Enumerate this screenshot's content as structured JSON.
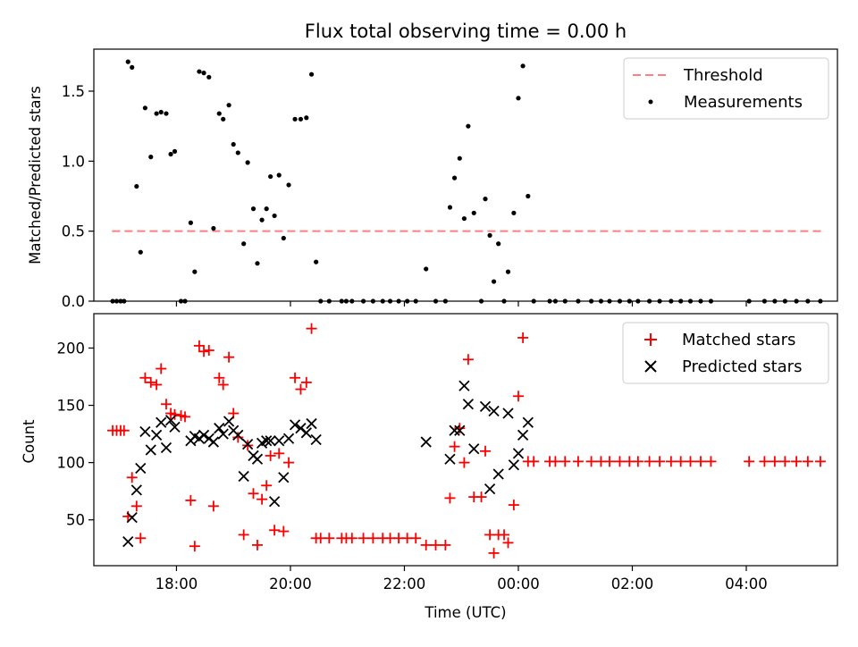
{
  "figure": {
    "title": "Flux total observing time = 0.00 h",
    "xlabel": "Time (UTC)"
  },
  "chart_data": [
    {
      "type": "scatter",
      "panel": "top",
      "ylabel": "Matched/Predicted stars",
      "xlim_hours": [
        16.55,
        29.6
      ],
      "ylim": [
        0,
        1.8
      ],
      "x_ticks": [
        {
          "x": 18,
          "label": "18:00"
        },
        {
          "x": 20,
          "label": "20:00"
        },
        {
          "x": 22,
          "label": "22:00"
        },
        {
          "x": 24,
          "label": "00:00"
        },
        {
          "x": 26,
          "label": "02:00"
        },
        {
          "x": 28,
          "label": "04:00"
        }
      ],
      "y_ticks": [
        {
          "y": 0,
          "label": "0.0"
        },
        {
          "y": 0.5,
          "label": "0.5"
        },
        {
          "y": 1.0,
          "label": "1.0"
        },
        {
          "y": 1.5,
          "label": "1.5"
        }
      ],
      "legend_position": "top-right",
      "threshold": {
        "name": "Threshold",
        "value": 0.5,
        "x_range": [
          16.87,
          29.35
        ],
        "color": "#ff7f7f"
      },
      "series": [
        {
          "name": "Measurements",
          "marker": "dot",
          "color": "#000000",
          "points": [
            [
              16.88,
              0
            ],
            [
              16.95,
              0
            ],
            [
              17.02,
              0
            ],
            [
              17.08,
              0
            ],
            [
              17.15,
              1.71
            ],
            [
              17.22,
              1.67
            ],
            [
              17.3,
              0.82
            ],
            [
              17.37,
              0.35
            ],
            [
              17.45,
              1.38
            ],
            [
              17.55,
              1.03
            ],
            [
              17.65,
              1.34
            ],
            [
              17.73,
              1.35
            ],
            [
              17.82,
              1.34
            ],
            [
              17.9,
              1.05
            ],
            [
              17.97,
              1.07
            ],
            [
              18.08,
              0
            ],
            [
              18.15,
              0
            ],
            [
              18.25,
              0.56
            ],
            [
              18.32,
              0.21
            ],
            [
              18.4,
              1.64
            ],
            [
              18.48,
              1.63
            ],
            [
              18.57,
              1.6
            ],
            [
              18.65,
              0.52
            ],
            [
              18.75,
              1.34
            ],
            [
              18.82,
              1.3
            ],
            [
              18.92,
              1.4
            ],
            [
              19.0,
              1.12
            ],
            [
              19.08,
              1.06
            ],
            [
              19.18,
              0.41
            ],
            [
              19.25,
              0.99
            ],
            [
              19.35,
              0.66
            ],
            [
              19.42,
              0.27
            ],
            [
              19.5,
              0.58
            ],
            [
              19.58,
              0.66
            ],
            [
              19.65,
              0.89
            ],
            [
              19.72,
              0.61
            ],
            [
              19.8,
              0.9
            ],
            [
              19.88,
              0.45
            ],
            [
              19.97,
              0.83
            ],
            [
              20.08,
              1.3
            ],
            [
              20.18,
              1.3
            ],
            [
              20.28,
              1.31
            ],
            [
              20.37,
              1.62
            ],
            [
              20.45,
              0.28
            ],
            [
              20.53,
              0
            ],
            [
              20.68,
              0
            ],
            [
              20.9,
              0
            ],
            [
              20.98,
              0
            ],
            [
              21.08,
              0
            ],
            [
              21.28,
              0
            ],
            [
              21.45,
              0
            ],
            [
              21.62,
              0
            ],
            [
              21.75,
              0
            ],
            [
              21.9,
              0
            ],
            [
              22.05,
              0
            ],
            [
              22.2,
              0
            ],
            [
              22.38,
              0.23
            ],
            [
              22.55,
              0
            ],
            [
              22.72,
              0
            ],
            [
              22.8,
              0.67
            ],
            [
              22.88,
              0.88
            ],
            [
              22.97,
              1.02
            ],
            [
              23.05,
              0.59
            ],
            [
              23.12,
              1.25
            ],
            [
              23.22,
              0.63
            ],
            [
              23.35,
              0
            ],
            [
              23.42,
              0.73
            ],
            [
              23.5,
              0.47
            ],
            [
              23.57,
              0.14
            ],
            [
              23.65,
              0.41
            ],
            [
              23.75,
              0
            ],
            [
              23.82,
              0.21
            ],
            [
              23.92,
              0.63
            ],
            [
              24.0,
              1.45
            ],
            [
              24.08,
              1.68
            ],
            [
              24.17,
              0.75
            ],
            [
              24.27,
              0
            ],
            [
              24.55,
              0
            ],
            [
              24.65,
              0
            ],
            [
              24.82,
              0
            ],
            [
              25.05,
              0
            ],
            [
              25.28,
              0
            ],
            [
              25.45,
              0
            ],
            [
              25.6,
              0
            ],
            [
              25.78,
              0
            ],
            [
              25.95,
              0
            ],
            [
              26.1,
              0
            ],
            [
              26.3,
              0
            ],
            [
              26.48,
              0
            ],
            [
              26.68,
              0
            ],
            [
              26.85,
              0
            ],
            [
              27.02,
              0
            ],
            [
              27.2,
              0
            ],
            [
              27.38,
              0
            ],
            [
              28.05,
              0
            ],
            [
              28.32,
              0
            ],
            [
              28.5,
              0
            ],
            [
              28.68,
              0
            ],
            [
              28.88,
              0
            ],
            [
              29.08,
              0
            ],
            [
              29.3,
              0
            ]
          ]
        }
      ]
    },
    {
      "type": "scatter",
      "panel": "bottom",
      "ylabel": "Count",
      "xlim_hours": [
        16.55,
        29.6
      ],
      "ylim": [
        10,
        230
      ],
      "x_ticks": [
        {
          "x": 18,
          "label": "18:00"
        },
        {
          "x": 20,
          "label": "20:00"
        },
        {
          "x": 22,
          "label": "22:00"
        },
        {
          "x": 24,
          "label": "00:00"
        },
        {
          "x": 26,
          "label": "02:00"
        },
        {
          "x": 28,
          "label": "04:00"
        }
      ],
      "y_ticks": [
        {
          "y": 50,
          "label": "50"
        },
        {
          "y": 100,
          "label": "100"
        },
        {
          "y": 150,
          "label": "150"
        },
        {
          "y": 200,
          "label": "200"
        }
      ],
      "legend_position": "top-right",
      "series": [
        {
          "name": "Matched stars",
          "marker": "plus",
          "color": "#ff0000",
          "points": [
            [
              16.88,
              128
            ],
            [
              16.95,
              128
            ],
            [
              17.02,
              128
            ],
            [
              17.08,
              128
            ],
            [
              17.15,
              53
            ],
            [
              17.22,
              87
            ],
            [
              17.3,
              62
            ],
            [
              17.37,
              34
            ],
            [
              17.45,
              174
            ],
            [
              17.55,
              170
            ],
            [
              17.65,
              168
            ],
            [
              17.73,
              182
            ],
            [
              17.82,
              151
            ],
            [
              17.9,
              143
            ],
            [
              17.97,
              142
            ],
            [
              18.08,
              141
            ],
            [
              18.15,
              140
            ],
            [
              18.25,
              67
            ],
            [
              18.32,
              27
            ],
            [
              18.4,
              202
            ],
            [
              18.48,
              197
            ],
            [
              18.57,
              198
            ],
            [
              18.65,
              62
            ],
            [
              18.75,
              174
            ],
            [
              18.82,
              168
            ],
            [
              18.92,
              192
            ],
            [
              19.0,
              143
            ],
            [
              19.08,
              122
            ],
            [
              19.18,
              37
            ],
            [
              19.25,
              115
            ],
            [
              19.35,
              73
            ],
            [
              19.42,
              28
            ],
            [
              19.5,
              68
            ],
            [
              19.58,
              80
            ],
            [
              19.65,
              106
            ],
            [
              19.72,
              41
            ],
            [
              19.8,
              108
            ],
            [
              19.88,
              40
            ],
            [
              19.97,
              100
            ],
            [
              20.08,
              174
            ],
            [
              20.18,
              164
            ],
            [
              20.28,
              170
            ],
            [
              20.37,
              217
            ],
            [
              20.45,
              34
            ],
            [
              20.53,
              34
            ],
            [
              20.68,
              34
            ],
            [
              20.9,
              34
            ],
            [
              20.98,
              34
            ],
            [
              21.08,
              34
            ],
            [
              21.28,
              34
            ],
            [
              21.45,
              34
            ],
            [
              21.62,
              34
            ],
            [
              21.75,
              34
            ],
            [
              21.9,
              34
            ],
            [
              22.05,
              34
            ],
            [
              22.2,
              34
            ],
            [
              22.38,
              28
            ],
            [
              22.55,
              28
            ],
            [
              22.72,
              28
            ],
            [
              22.8,
              69
            ],
            [
              22.88,
              114
            ],
            [
              22.97,
              130
            ],
            [
              23.05,
              100
            ],
            [
              23.12,
              190
            ],
            [
              23.22,
              70
            ],
            [
              23.35,
              70
            ],
            [
              23.42,
              110
            ],
            [
              23.5,
              37
            ],
            [
              23.57,
              21
            ],
            [
              23.65,
              37
            ],
            [
              23.75,
              37
            ],
            [
              23.82,
              30
            ],
            [
              23.92,
              63
            ],
            [
              24.0,
              158
            ],
            [
              24.08,
              209
            ],
            [
              24.17,
              101
            ],
            [
              24.27,
              101
            ],
            [
              24.55,
              101
            ],
            [
              24.65,
              101
            ],
            [
              24.82,
              101
            ],
            [
              25.05,
              101
            ],
            [
              25.28,
              101
            ],
            [
              25.45,
              101
            ],
            [
              25.6,
              101
            ],
            [
              25.78,
              101
            ],
            [
              25.95,
              101
            ],
            [
              26.1,
              101
            ],
            [
              26.3,
              101
            ],
            [
              26.48,
              101
            ],
            [
              26.68,
              101
            ],
            [
              26.85,
              101
            ],
            [
              27.02,
              101
            ],
            [
              27.2,
              101
            ],
            [
              27.38,
              101
            ],
            [
              28.05,
              101
            ],
            [
              28.32,
              101
            ],
            [
              28.5,
              101
            ],
            [
              28.68,
              101
            ],
            [
              28.88,
              101
            ],
            [
              29.08,
              101
            ],
            [
              29.3,
              101
            ]
          ]
        },
        {
          "name": "Predicted stars",
          "marker": "x",
          "color": "#000000",
          "points": [
            [
              17.15,
              31
            ],
            [
              17.22,
              52
            ],
            [
              17.3,
              76
            ],
            [
              17.37,
              95
            ],
            [
              17.45,
              127
            ],
            [
              17.55,
              111
            ],
            [
              17.65,
              124
            ],
            [
              17.73,
              135
            ],
            [
              17.82,
              113
            ],
            [
              17.9,
              137
            ],
            [
              17.97,
              131
            ],
            [
              18.25,
              119
            ],
            [
              18.32,
              123
            ],
            [
              18.4,
              121
            ],
            [
              18.48,
              124
            ],
            [
              18.57,
              121
            ],
            [
              18.65,
              118
            ],
            [
              18.75,
              130
            ],
            [
              18.82,
              125
            ],
            [
              18.92,
              136
            ],
            [
              19.0,
              128
            ],
            [
              19.08,
              124
            ],
            [
              19.18,
              88
            ],
            [
              19.25,
              116
            ],
            [
              19.35,
              106
            ],
            [
              19.42,
              103
            ],
            [
              19.5,
              117
            ],
            [
              19.58,
              119
            ],
            [
              19.65,
              119
            ],
            [
              19.72,
              66
            ],
            [
              19.8,
              119
            ],
            [
              19.88,
              87
            ],
            [
              19.97,
              121
            ],
            [
              20.08,
              133
            ],
            [
              20.18,
              130
            ],
            [
              20.28,
              126
            ],
            [
              20.37,
              134
            ],
            [
              20.45,
              120
            ],
            [
              22.38,
              118
            ],
            [
              22.8,
              103
            ],
            [
              22.88,
              128
            ],
            [
              22.97,
              128
            ],
            [
              23.05,
              167
            ],
            [
              23.12,
              151
            ],
            [
              23.22,
              112
            ],
            [
              23.42,
              149
            ],
            [
              23.5,
              77
            ],
            [
              23.57,
              145
            ],
            [
              23.65,
              90
            ],
            [
              23.82,
              143
            ],
            [
              23.92,
              98
            ],
            [
              24.0,
              108
            ],
            [
              24.08,
              124
            ],
            [
              24.17,
              135
            ]
          ]
        }
      ]
    }
  ]
}
